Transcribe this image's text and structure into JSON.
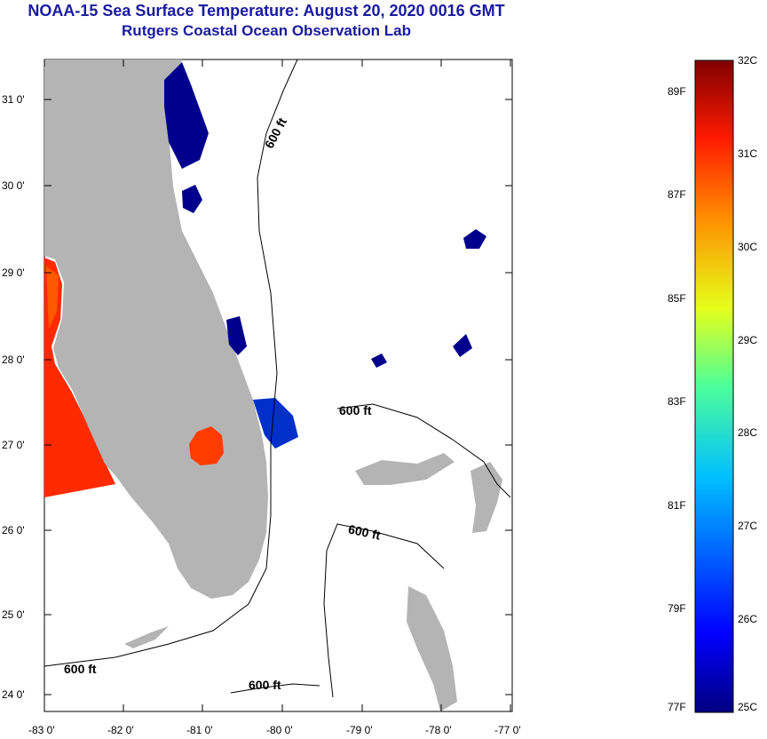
{
  "header": {
    "title": "NOAA-15 Sea Surface Temperature:  August 20, 2020 0016 GMT",
    "subtitle": "Rutgers Coastal Ocean Observation Lab"
  },
  "map": {
    "lat_ticks": [
      "31 0'",
      "30 0'",
      "29 0'",
      "28 0'",
      "27 0'",
      "26 0'",
      "25 0'",
      "24 0'"
    ],
    "lon_ticks": [
      "-83 0'",
      "-82 0'",
      "-81 0'",
      "-80 0'",
      "-79 0'",
      "-78 0'",
      "-77 0'"
    ],
    "contour_labels": [
      "600 ft",
      "600 ft",
      "600 ft",
      "600 ft",
      "600 ft"
    ],
    "colors": {
      "land": "#b4b4b4",
      "cold": "#00008c",
      "warm": "#ff2a00"
    }
  },
  "colorbar": {
    "fahrenheit": [
      "89F",
      "87F",
      "85F",
      "83F",
      "81F",
      "79F",
      "77F"
    ],
    "celsius": [
      "32C",
      "31C",
      "30C",
      "29C",
      "28C",
      "27C",
      "26C",
      "25C"
    ],
    "range_c": [
      25,
      32
    ]
  }
}
